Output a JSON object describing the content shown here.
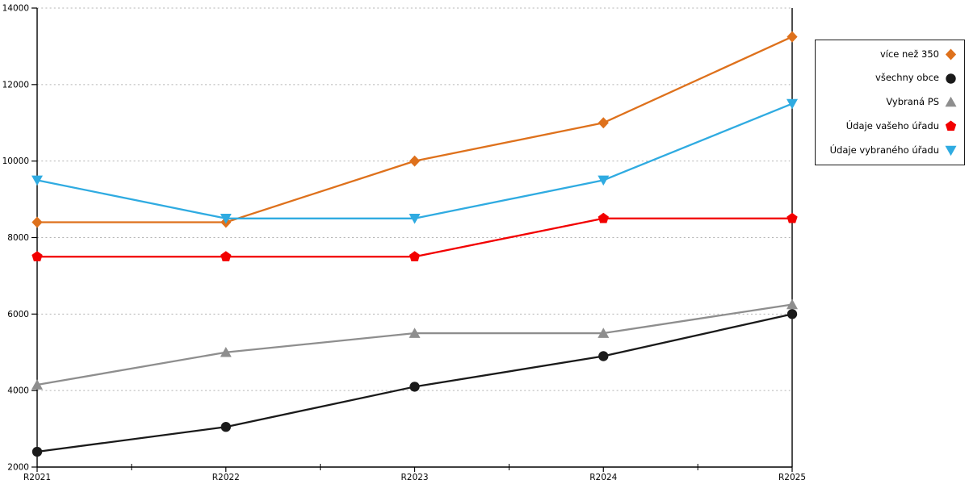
{
  "chart_data": {
    "type": "line",
    "title": "",
    "xlabel": "",
    "ylabel": "",
    "categories": [
      "R2021",
      "R2022",
      "R2023",
      "R2024",
      "R2025"
    ],
    "series": [
      {
        "name": "více než 350",
        "color": "#de711c",
        "marker": "diamond-icon",
        "values": [
          8400,
          8400,
          10000,
          11000,
          13250
        ]
      },
      {
        "name": "všechny obce",
        "color": "#1a1a1a",
        "marker": "circle-icon",
        "values": [
          2400,
          3050,
          4100,
          4900,
          6000
        ]
      },
      {
        "name": "Vybraná PS",
        "color": "#8e8e8e",
        "marker": "triangle-up-icon",
        "values": [
          4150,
          5000,
          5500,
          5500,
          6250
        ]
      },
      {
        "name": "Údaje vašeho úřadu",
        "color": "#f20000",
        "marker": "pentagon-icon",
        "values": [
          7500,
          7500,
          7500,
          8500,
          8500
        ]
      },
      {
        "name": "Údaje vybraného úřadu",
        "color": "#2fabe1",
        "marker": "triangle-down-icon",
        "values": [
          9500,
          8500,
          8500,
          9500,
          11500
        ]
      }
    ],
    "ylim": [
      2000,
      14000
    ],
    "yticks": [
      2000,
      4000,
      6000,
      8000,
      10000,
      12000,
      14000
    ],
    "grid": "horizontal-dotted",
    "gridline_color": "#b5b5b5",
    "axis_color": "#000000",
    "legend_position": "outside-upper-right",
    "x_minor_ticks": "midpoints"
  }
}
